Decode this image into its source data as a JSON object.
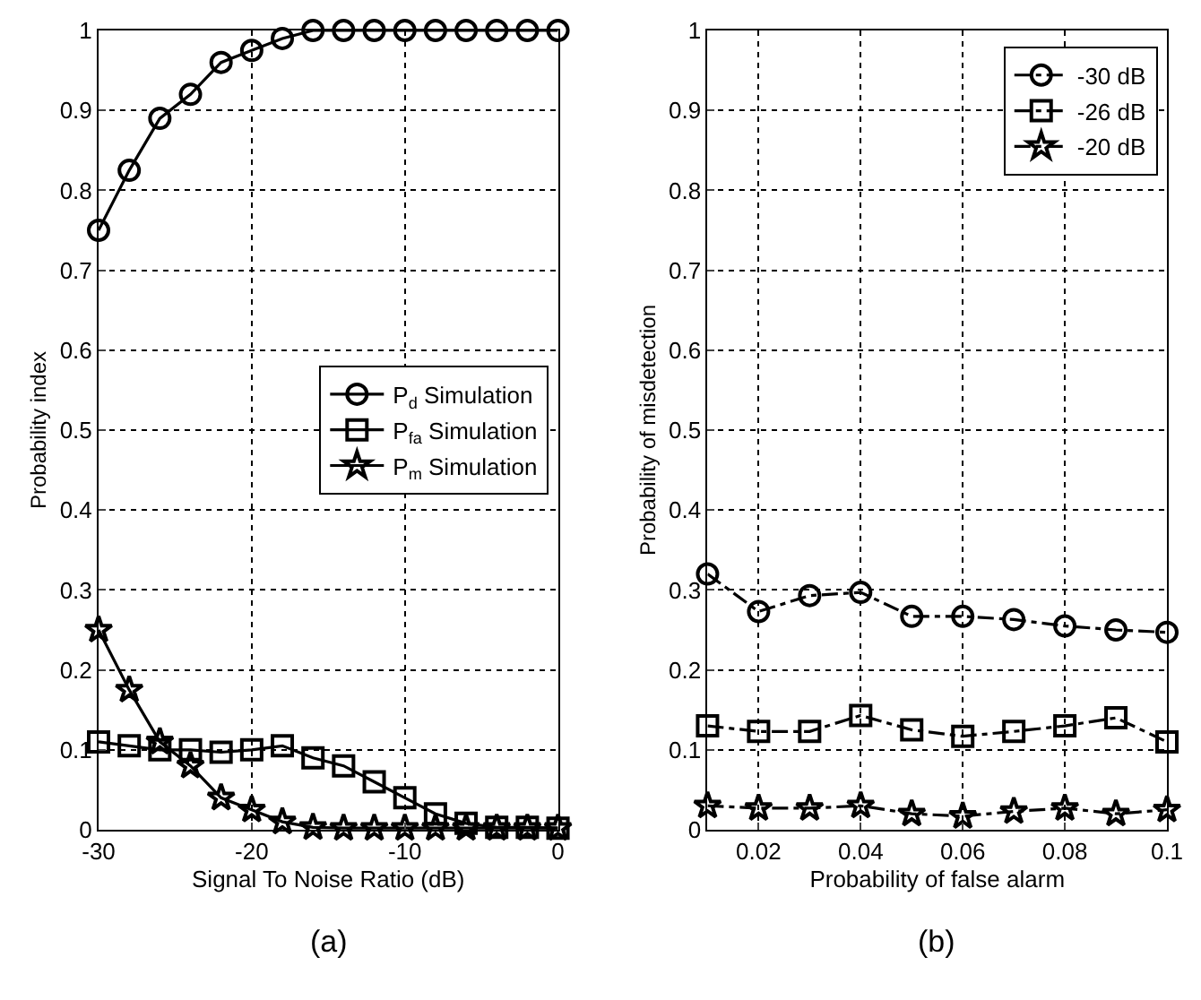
{
  "chart_data": [
    {
      "type": "line",
      "xlabel": "Signal To Noise Ratio (dB)",
      "ylabel": "Probability index",
      "annotations": [
        "(a)"
      ],
      "x": [
        -30,
        -28,
        -26,
        -24,
        -22,
        -20,
        -18,
        -16,
        -14,
        -12,
        -10,
        -8,
        -6,
        -4,
        -2,
        0
      ],
      "series": [
        {
          "name": "P$_{d}$ Simulation",
          "color": "#000000",
          "marker": "circle",
          "values": [
            0.75,
            0.825,
            0.89,
            0.92,
            0.96,
            0.975,
            0.99,
            1,
            1,
            1,
            1,
            1,
            1,
            1,
            1,
            1
          ]
        },
        {
          "name": "P$_{fa}$ Simulation",
          "color": "#000000",
          "marker": "square",
          "values": [
            0.11,
            0.105,
            0.1,
            0.1,
            0.097,
            0.1,
            0.105,
            0.09,
            0.08,
            0.06,
            0.04,
            0.02,
            0.008,
            0.003,
            0.003,
            0.002
          ]
        },
        {
          "name": "P$_{m}$ Simulation",
          "color": "#000000",
          "marker": "star",
          "values": [
            0.25,
            0.175,
            0.11,
            0.08,
            0.04,
            0.025,
            0.01,
            0.003,
            0.002,
            0.002,
            0.002,
            0.002,
            0.002,
            0.002,
            0.002,
            0.002
          ]
        }
      ],
      "xlim": [
        -30,
        0
      ],
      "xticks": [
        -30,
        -20,
        -10,
        0
      ],
      "ylim": [
        0,
        1
      ],
      "yticks": [
        0,
        0.1,
        0.2,
        0.3,
        0.4,
        0.5,
        0.6,
        0.7,
        0.8,
        0.9,
        1
      ],
      "grid": true,
      "legend": "right",
      "line_style": "solid"
    },
    {
      "type": "line",
      "xlabel": "Probability of false alarm",
      "ylabel": "Probability of misdetection",
      "annotations": [
        "(b)"
      ],
      "x": [
        0.01,
        0.02,
        0.03,
        0.04,
        0.05,
        0.06,
        0.07,
        0.08,
        0.09,
        0.1
      ],
      "series": [
        {
          "name": "-30 dB",
          "color": "#000000",
          "marker": "circle",
          "values": [
            0.32,
            0.273,
            0.293,
            0.297,
            0.267,
            0.267,
            0.263,
            0.255,
            0.25,
            0.247
          ]
        },
        {
          "name": "-26 dB",
          "color": "#000000",
          "marker": "square",
          "values": [
            0.13,
            0.123,
            0.123,
            0.143,
            0.125,
            0.117,
            0.123,
            0.13,
            0.14,
            0.11
          ]
        },
        {
          "name": "-20 dB",
          "color": "#000000",
          "marker": "star",
          "values": [
            0.03,
            0.027,
            0.027,
            0.03,
            0.02,
            0.017,
            0.023,
            0.027,
            0.02,
            0.025
          ]
        }
      ],
      "xlim": [
        0.01,
        0.1
      ],
      "xticks": [
        0.02,
        0.04,
        0.06,
        0.08,
        0.1
      ],
      "ylim": [
        0,
        1
      ],
      "yticks": [
        0,
        0.1,
        0.2,
        0.3,
        0.4,
        0.5,
        0.6,
        0.7,
        0.8,
        0.9,
        1
      ],
      "grid": true,
      "legend": "top right",
      "line_style": "dashed"
    }
  ]
}
